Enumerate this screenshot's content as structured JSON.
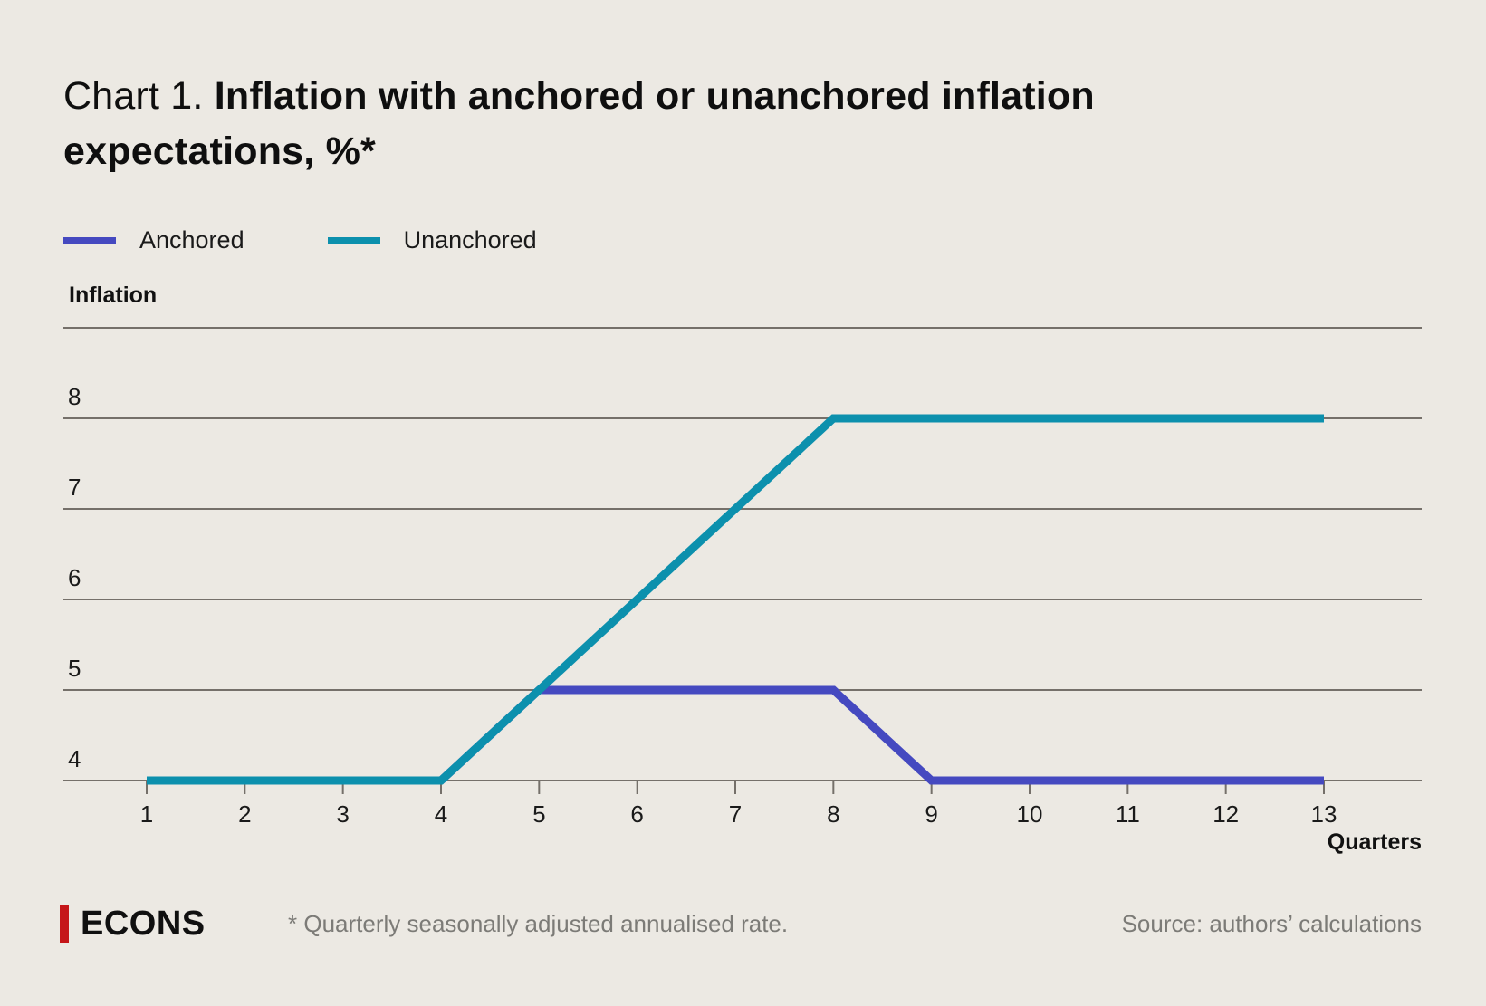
{
  "title": {
    "prefix": "Chart 1.",
    "main": " Inflation with anchored or unanchored inflation expectations, %*"
  },
  "legend": {
    "items": [
      {
        "label": "Anchored",
        "color": "#4549C0"
      },
      {
        "label": "Unanchored",
        "color": "#0C90AD"
      }
    ]
  },
  "chart_data": {
    "type": "line",
    "x": [
      1,
      2,
      3,
      4,
      5,
      6,
      7,
      8,
      9,
      10,
      11,
      12,
      13
    ],
    "series": [
      {
        "name": "Anchored",
        "color": "#4549C0",
        "values": [
          4,
          4,
          4,
          4,
          5,
          5,
          5,
          5,
          4,
          4,
          4,
          4,
          4
        ]
      },
      {
        "name": "Unanchored",
        "color": "#0C90AD",
        "values": [
          4,
          4,
          4,
          4,
          5,
          6,
          7,
          8,
          8,
          8,
          8,
          8,
          8
        ]
      }
    ],
    "title": "Chart 1. Inflation with anchored or unanchored inflation expectations, %*",
    "xlabel": "Quarters",
    "ylabel": "Inflation",
    "ylim": [
      4,
      9
    ],
    "yticks": [
      8,
      7,
      6,
      5,
      4
    ],
    "gridline_values": [
      9,
      8,
      7,
      6,
      5,
      4
    ],
    "grid": true,
    "legend_position": "top-left",
    "gridline_color": "#75706A"
  },
  "axes": {
    "y_title": "Inflation",
    "x_title": "Quarters"
  },
  "footer": {
    "logo_text": "ECONS",
    "logo_accent_color": "#C51619",
    "footnote": "* Quarterly seasonally adjusted annualised rate.",
    "source": "Source: authors’ calculations"
  }
}
